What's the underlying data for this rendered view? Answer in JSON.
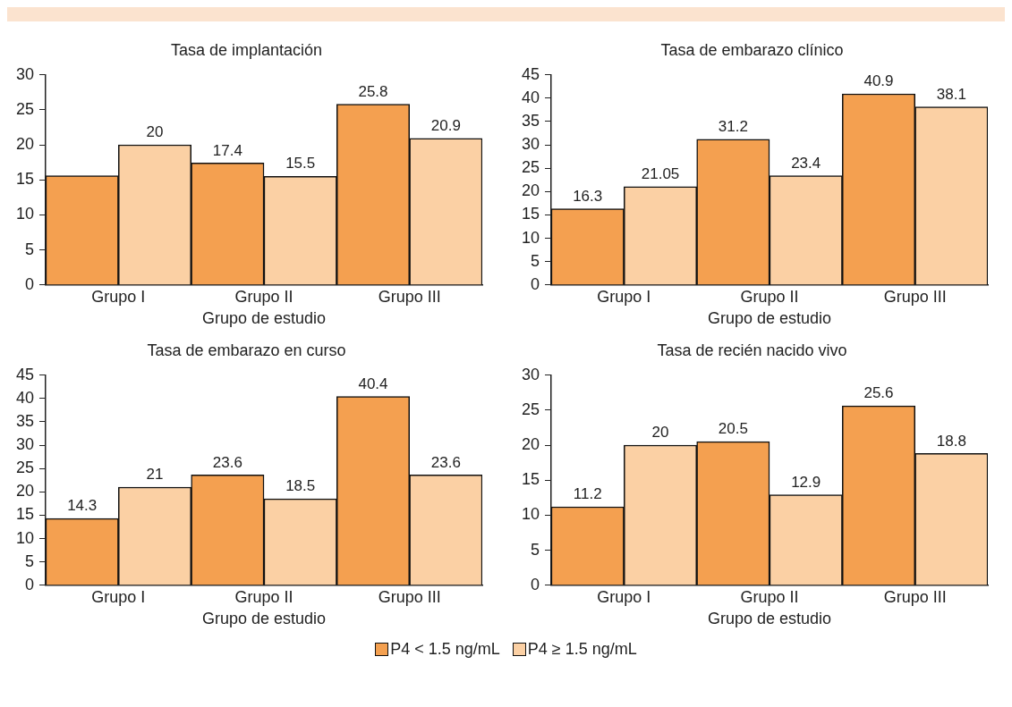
{
  "chart_data": [
    {
      "type": "bar",
      "title": "Tasa de implantación",
      "xlabel": "Grupo de estudio",
      "categories": [
        "Grupo I",
        "Grupo II",
        "Grupo III"
      ],
      "ylim": [
        0,
        30
      ],
      "yticks": [
        0,
        5,
        10,
        15,
        20,
        25,
        30
      ],
      "grid": false,
      "legend": "bottom",
      "series": [
        {
          "name": "P4 < 1.5 ng/mL",
          "color": "#f4a050",
          "values": [
            15.6,
            17.4,
            25.8
          ],
          "value_labels": [
            null,
            "17.4",
            "25.8"
          ]
        },
        {
          "name": "P4 ≥ 1.5 ng/mL",
          "color": "#fbd0a4",
          "values": [
            20,
            15.5,
            20.9
          ],
          "value_labels": [
            "20",
            "15.5",
            "20.9"
          ]
        }
      ]
    },
    {
      "type": "bar",
      "title": "Tasa de embarazo clínico",
      "xlabel": "Grupo de estudio",
      "categories": [
        "Grupo I",
        "Grupo II",
        "Grupo III"
      ],
      "ylim": [
        0,
        45
      ],
      "yticks": [
        0,
        5,
        10,
        15,
        20,
        25,
        30,
        35,
        40,
        45
      ],
      "grid": false,
      "data_labels": true,
      "series": [
        {
          "color": "#f4a050",
          "values": [
            16.3,
            31.2,
            40.9
          ]
        },
        {
          "color": "#fbd0a4",
          "values": [
            21.05,
            23.4,
            38.1
          ]
        }
      ]
    },
    {
      "type": "bar",
      "title": "Tasa de embarazo en curso",
      "xlabel": "Grupo de estudio",
      "categories": [
        "Grupo I",
        "Grupo II",
        "Grupo III"
      ],
      "ylim": [
        0,
        45
      ],
      "yticks": [
        0,
        5,
        10,
        15,
        20,
        25,
        30,
        35,
        40,
        45
      ],
      "grid": false,
      "data_labels": true,
      "series": [
        {
          "color": "#f4a050",
          "values": [
            14.3,
            23.6,
            40.4
          ]
        },
        {
          "color": "#fbd0a4",
          "values": [
            21,
            18.5,
            23.6
          ]
        }
      ]
    },
    {
      "type": "bar",
      "title": "Tasa de recién nacido vivo",
      "xlabel": "Grupo de estudio",
      "categories": [
        "Grupo I",
        "Grupo II",
        "Grupo III"
      ],
      "ylim": [
        0,
        30
      ],
      "yticks": [
        0,
        5,
        10,
        15,
        20,
        25,
        30
      ],
      "grid": false,
      "data_labels": true,
      "series": [
        {
          "color": "#f4a050",
          "values": [
            11.2,
            20.5,
            25.6
          ]
        },
        {
          "color": "#fbd0a4",
          "values": [
            20,
            12.9,
            18.8
          ]
        }
      ]
    }
  ]
}
